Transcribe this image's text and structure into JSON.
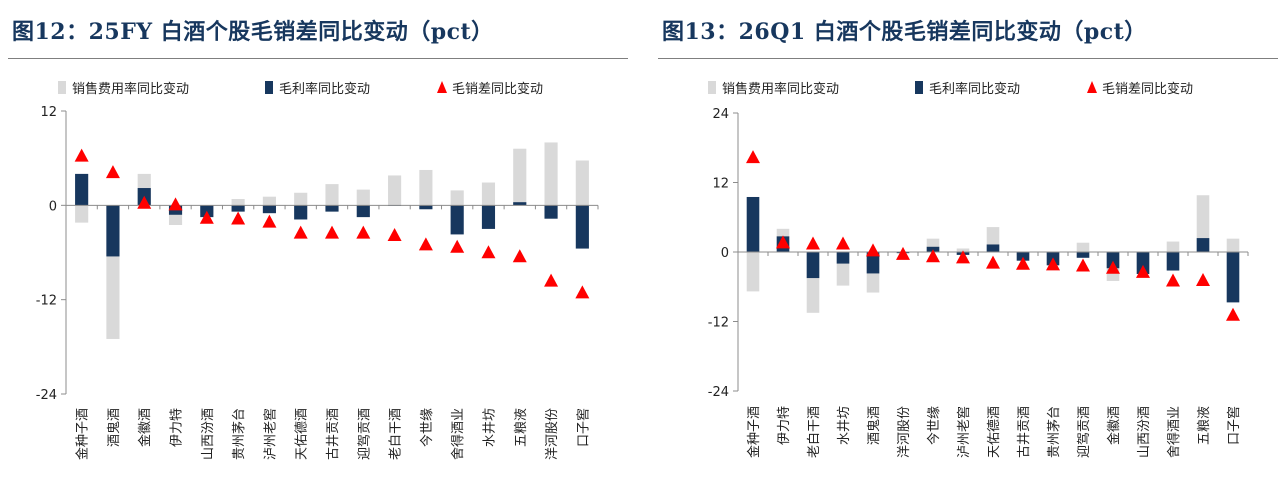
{
  "colors": {
    "sales_expense": "#d9d9d9",
    "gross_margin": "#17375e",
    "gm_minus_sales": "#ff0000",
    "title": "#17375e"
  },
  "panels": [
    {
      "title": "图12：25FY 白酒个股毛销差同比变动（pct）"
    },
    {
      "title": "图13：26Q1 白酒个股毛销差同比变动（pct）"
    }
  ],
  "chart_data": [
    {
      "type": "bar",
      "title": "图12：25FY 白酒个股毛销差同比变动（pct）",
      "ylim": [
        -24,
        12
      ],
      "yticks": [
        12,
        0,
        -12,
        -24
      ],
      "grid": false,
      "legend_position": "top",
      "categories": [
        "金种子酒",
        "酒鬼酒",
        "金徽酒",
        "伊力特",
        "山西汾酒",
        "贵州茅台",
        "泸州老窖",
        "天佑德酒",
        "古井贡酒",
        "迎驾贡酒",
        "老白干酒",
        "今世缘",
        "舍得酒业",
        "水井坊",
        "五粮液",
        "洋河股份",
        "口子窖"
      ],
      "series": [
        {
          "name": "销售费用率同比变动",
          "kind": "bar",
          "values": [
            -2.2,
            -17,
            4,
            -2.5,
            -1,
            0.8,
            1.1,
            1.6,
            2.7,
            2,
            3.8,
            4.5,
            1.9,
            2.9,
            7.2,
            8,
            5.7
          ]
        },
        {
          "name": "毛利率同比变动",
          "kind": "bar",
          "values": [
            4,
            -6.5,
            2.2,
            -1.2,
            -1.5,
            -0.8,
            -1,
            -1.8,
            -0.8,
            -1.5,
            0,
            -0.5,
            -3.7,
            -3,
            0.4,
            -1.7,
            -5.5
          ]
        },
        {
          "name": "毛销差同比变动",
          "kind": "marker",
          "values": [
            6.2,
            4.1,
            0.2,
            0,
            -1.7,
            -1.8,
            -2.2,
            -3.6,
            -3.6,
            -3.6,
            -3.9,
            -5.1,
            -5.4,
            -6.1,
            -6.6,
            -9.7,
            -11.2
          ]
        }
      ]
    },
    {
      "type": "bar",
      "title": "图13：26Q1 白酒个股毛销差同比变动（pct）",
      "ylim": [
        -24,
        24
      ],
      "yticks": [
        24,
        12,
        0,
        -12,
        -24
      ],
      "grid": false,
      "legend_position": "top",
      "categories": [
        "金种子酒",
        "伊力特",
        "老白干酒",
        "水井坊",
        "酒鬼酒",
        "洋河股份",
        "今世缘",
        "泸州老窖",
        "天佑德酒",
        "古井贡酒",
        "贵州茅台",
        "迎驾贡酒",
        "金徽酒",
        "山西汾酒",
        "舍得酒业",
        "五粮液",
        "口子窖"
      ],
      "series": [
        {
          "name": "销售费用率同比变动",
          "kind": "bar",
          "values": [
            -6.8,
            4,
            -10.5,
            -5.8,
            -7,
            0,
            2.3,
            0.6,
            4.3,
            -0.5,
            -0.4,
            1.6,
            -5,
            -3,
            1.8,
            9.8,
            2.3
          ]
        },
        {
          "name": "毛利率同比变动",
          "kind": "bar",
          "values": [
            9.5,
            2.7,
            -4.5,
            -2,
            -3.7,
            -0.2,
            0.9,
            -0.5,
            1.3,
            -1.5,
            -2.3,
            -1,
            -2.8,
            -3.8,
            -3.2,
            2.4,
            -8.7
          ]
        },
        {
          "name": "毛销差同比变动",
          "kind": "marker",
          "values": [
            16.2,
            1.5,
            1.3,
            1.3,
            0.1,
            -0.5,
            -0.9,
            -1.1,
            -2,
            -2.2,
            -2.3,
            -2.5,
            -2.9,
            -3.6,
            -5.1,
            -5,
            -11
          ]
        }
      ]
    }
  ]
}
